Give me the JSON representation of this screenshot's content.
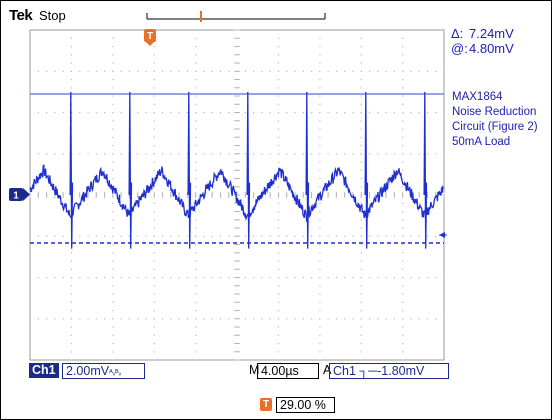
{
  "header": {
    "brand": "Tek",
    "run_state": "Stop"
  },
  "cursor_readout": {
    "delta_symbol": "Δ:",
    "delta_value": "7.24mV",
    "at_symbol": "@:",
    "at_value": "4.80mV"
  },
  "annotation": {
    "lines": [
      "MAX1864",
      "Noise Reduction",
      "Circuit (Figure 2)",
      "50mA Load"
    ]
  },
  "markers": {
    "trigger_marker": "T",
    "channel_marker": "1"
  },
  "bottom": {
    "ch1_label": "Ch1",
    "ch1_scale": "2.00mV",
    "ch1_bw_glyph": "ᴬᵥᴮᵥ",
    "m_label": "M",
    "timebase": "4.00µs",
    "a_label": "A",
    "trigger_source": "Ch1",
    "trigger_slope": "⌐",
    "trigger_level": "-1.80mV",
    "trigger_position_marker": "T",
    "trigger_position": "29.00 %"
  },
  "colors": {
    "trace": "#1f2fd0",
    "grid": "#b8b8b8",
    "cursor": "#5a6cd8",
    "readout": "#2020b0",
    "trigger_marker": "#e8702a",
    "channel_badge": "#1c2a8c"
  },
  "chart_data": {
    "type": "line",
    "title": "",
    "xlabel": "",
    "ylabel": "",
    "x_divisions": 10,
    "y_divisions": 8,
    "time_per_div_us": 4.0,
    "volts_per_div_mV": 2.0,
    "series": [
      {
        "name": "Ch1",
        "description_values": {
          "ripple_period_us": 5.7,
          "ripple_pk_pk_mV": 2.4,
          "spike_peak_mV": 5.0,
          "spike_trough_mV": -2.6
        }
      }
    ],
    "cursors": {
      "upper_mV": 4.8,
      "lower_mV": -2.44,
      "delta_mV": 7.24
    }
  }
}
